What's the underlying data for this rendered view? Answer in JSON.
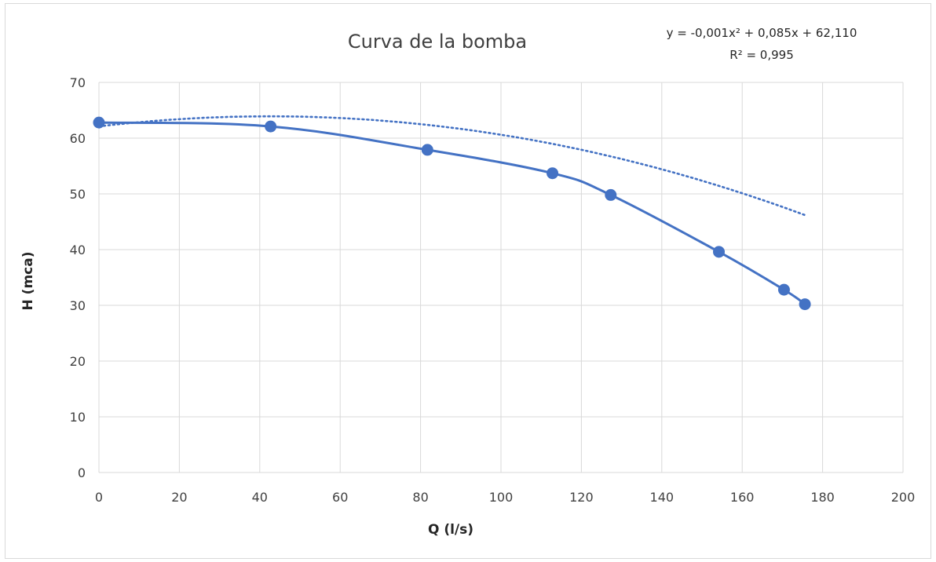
{
  "chart_data": {
    "type": "scatter",
    "title": "Curva de la bomba",
    "xlabel": "Q (l/s)",
    "ylabel": "H (mca)",
    "xlim": [
      0,
      200
    ],
    "ylim": [
      0,
      70
    ],
    "x_ticks": [
      0,
      20,
      40,
      60,
      80,
      100,
      120,
      140,
      160,
      180,
      200
    ],
    "y_ticks": [
      0,
      10,
      20,
      30,
      40,
      50,
      60,
      70
    ],
    "grid": true,
    "legend": "none",
    "series": [
      {
        "style": "smooth line with markers",
        "color": "#4472c4",
        "points": [
          {
            "x": 0,
            "y": 62.8
          },
          {
            "x": 42.7,
            "y": 62.1
          },
          {
            "x": 81.7,
            "y": 57.9
          },
          {
            "x": 112.8,
            "y": 53.7
          },
          {
            "x": 127.3,
            "y": 49.8
          },
          {
            "x": 154.2,
            "y": 39.6
          },
          {
            "x": 170.4,
            "y": 32.8
          },
          {
            "x": 175.6,
            "y": 30.2
          }
        ]
      }
    ],
    "trendline": {
      "type": "polynomial-2",
      "style": "dotted",
      "color": "#4472c4",
      "coefficients": {
        "a": -0.001,
        "b": 0.085,
        "c": 62.11
      },
      "equation_text": "y = -0,001x² + 0,085x + 62,110",
      "r2_text": "R² = 0,995"
    }
  }
}
